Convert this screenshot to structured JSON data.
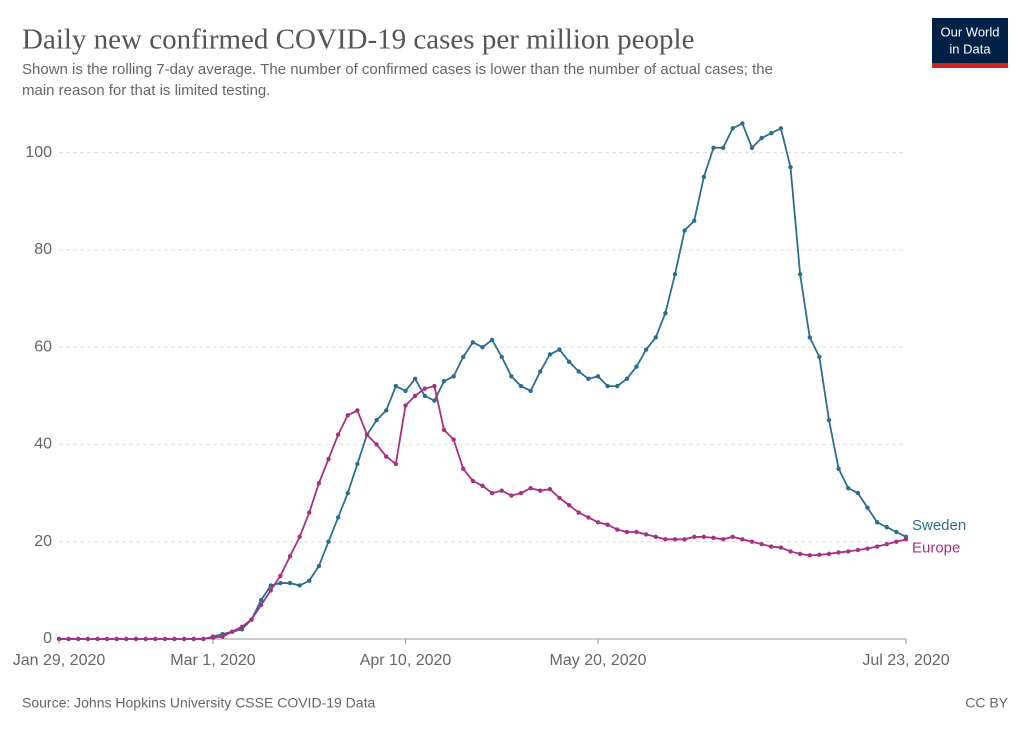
{
  "chart_data": {
    "type": "line",
    "title": "Daily new confirmed COVID-19 cases per million people",
    "subtitle": [
      "Shown is the rolling 7-day average. The number of confirmed cases is lower than the number of actual cases; the",
      "main reason for that is limited testing."
    ],
    "source": "Source: Johns Hopkins University CSSE COVID-19 Data",
    "license": "CC BY",
    "logo": [
      "Our World",
      "in Data"
    ],
    "x": [
      "2020-01-29",
      "2020-01-31",
      "2020-02-02",
      "2020-02-04",
      "2020-02-06",
      "2020-02-08",
      "2020-02-10",
      "2020-02-12",
      "2020-02-14",
      "2020-02-16",
      "2020-02-18",
      "2020-02-20",
      "2020-02-22",
      "2020-02-24",
      "2020-02-26",
      "2020-02-28",
      "2020-03-01",
      "2020-03-03",
      "2020-03-05",
      "2020-03-07",
      "2020-03-09",
      "2020-03-11",
      "2020-03-13",
      "2020-03-15",
      "2020-03-17",
      "2020-03-19",
      "2020-03-21",
      "2020-03-23",
      "2020-03-25",
      "2020-03-27",
      "2020-03-29",
      "2020-03-31",
      "2020-04-02",
      "2020-04-04",
      "2020-04-06",
      "2020-04-08",
      "2020-04-10",
      "2020-04-12",
      "2020-04-14",
      "2020-04-16",
      "2020-04-18",
      "2020-04-20",
      "2020-04-22",
      "2020-04-24",
      "2020-04-26",
      "2020-04-28",
      "2020-04-30",
      "2020-05-02",
      "2020-05-04",
      "2020-05-06",
      "2020-05-08",
      "2020-05-10",
      "2020-05-12",
      "2020-05-14",
      "2020-05-16",
      "2020-05-18",
      "2020-05-20",
      "2020-05-22",
      "2020-05-24",
      "2020-05-26",
      "2020-05-28",
      "2020-05-30",
      "2020-06-01",
      "2020-06-03",
      "2020-06-05",
      "2020-06-07",
      "2020-06-09",
      "2020-06-11",
      "2020-06-13",
      "2020-06-15",
      "2020-06-17",
      "2020-06-19",
      "2020-06-21",
      "2020-06-23",
      "2020-06-25",
      "2020-06-27",
      "2020-06-29",
      "2020-07-01",
      "2020-07-03",
      "2020-07-05",
      "2020-07-07",
      "2020-07-09",
      "2020-07-11",
      "2020-07-13",
      "2020-07-15",
      "2020-07-17",
      "2020-07-19",
      "2020-07-21",
      "2020-07-23"
    ],
    "series": [
      {
        "name": "Sweden",
        "color": "#2b6f8e",
        "values": [
          0,
          0,
          0,
          0,
          0,
          0,
          0,
          0,
          0,
          0,
          0,
          0,
          0,
          0,
          0,
          0,
          0.5,
          1,
          1.5,
          2,
          4,
          8,
          11,
          11.5,
          11.5,
          11,
          12,
          15,
          20,
          25,
          30,
          36,
          42,
          45,
          47,
          52,
          51,
          53.5,
          50,
          49,
          53,
          54,
          58,
          61,
          60,
          61.5,
          58,
          54,
          52,
          51,
          55,
          58.5,
          59.5,
          57,
          55,
          53.5,
          54,
          52,
          52,
          53.5,
          56,
          59.5,
          62,
          67,
          75,
          84,
          86,
          95,
          101,
          101,
          105,
          106,
          101,
          103,
          104,
          105,
          97,
          75,
          62,
          58,
          45,
          35,
          31,
          30,
          27,
          24,
          23,
          22,
          21
        ]
      },
      {
        "name": "Europe",
        "color": "#a73083",
        "values": [
          0,
          0,
          0,
          0,
          0,
          0,
          0,
          0,
          0,
          0,
          0,
          0,
          0,
          0,
          0,
          0,
          0.3,
          0.5,
          1.5,
          2.5,
          4,
          7,
          10,
          13,
          17,
          21,
          26,
          32,
          37,
          42,
          46,
          47,
          42,
          40,
          37.5,
          36,
          48,
          50,
          51.5,
          52,
          43,
          41,
          35,
          32.5,
          31.5,
          30,
          30.5,
          29.5,
          30,
          31,
          30.5,
          30.8,
          29,
          27.5,
          26,
          25,
          24,
          23.5,
          22.5,
          22,
          22,
          21.5,
          21,
          20.5,
          20.5,
          20.5,
          21,
          21,
          20.8,
          20.5,
          21,
          20.5,
          20,
          19.5,
          19,
          18.8,
          18,
          17.5,
          17.2,
          17.3,
          17.5,
          17.8,
          18,
          18.3,
          18.6,
          19,
          19.5,
          20,
          20.5
        ]
      }
    ],
    "xlim": [
      "2020-01-29",
      "2020-07-23"
    ],
    "xticks": [
      {
        "value": "2020-01-29",
        "label": "Jan 29, 2020"
      },
      {
        "value": "2020-03-01",
        "label": "Mar 1, 2020"
      },
      {
        "value": "2020-04-10",
        "label": "Apr 10, 2020"
      },
      {
        "value": "2020-05-20",
        "label": "May 20, 2020"
      },
      {
        "value": "2020-07-23",
        "label": "Jul 23, 2020"
      }
    ],
    "ylim": [
      0,
      110
    ],
    "yticks": [
      0,
      20,
      40,
      60,
      80,
      100
    ],
    "grid": true
  }
}
